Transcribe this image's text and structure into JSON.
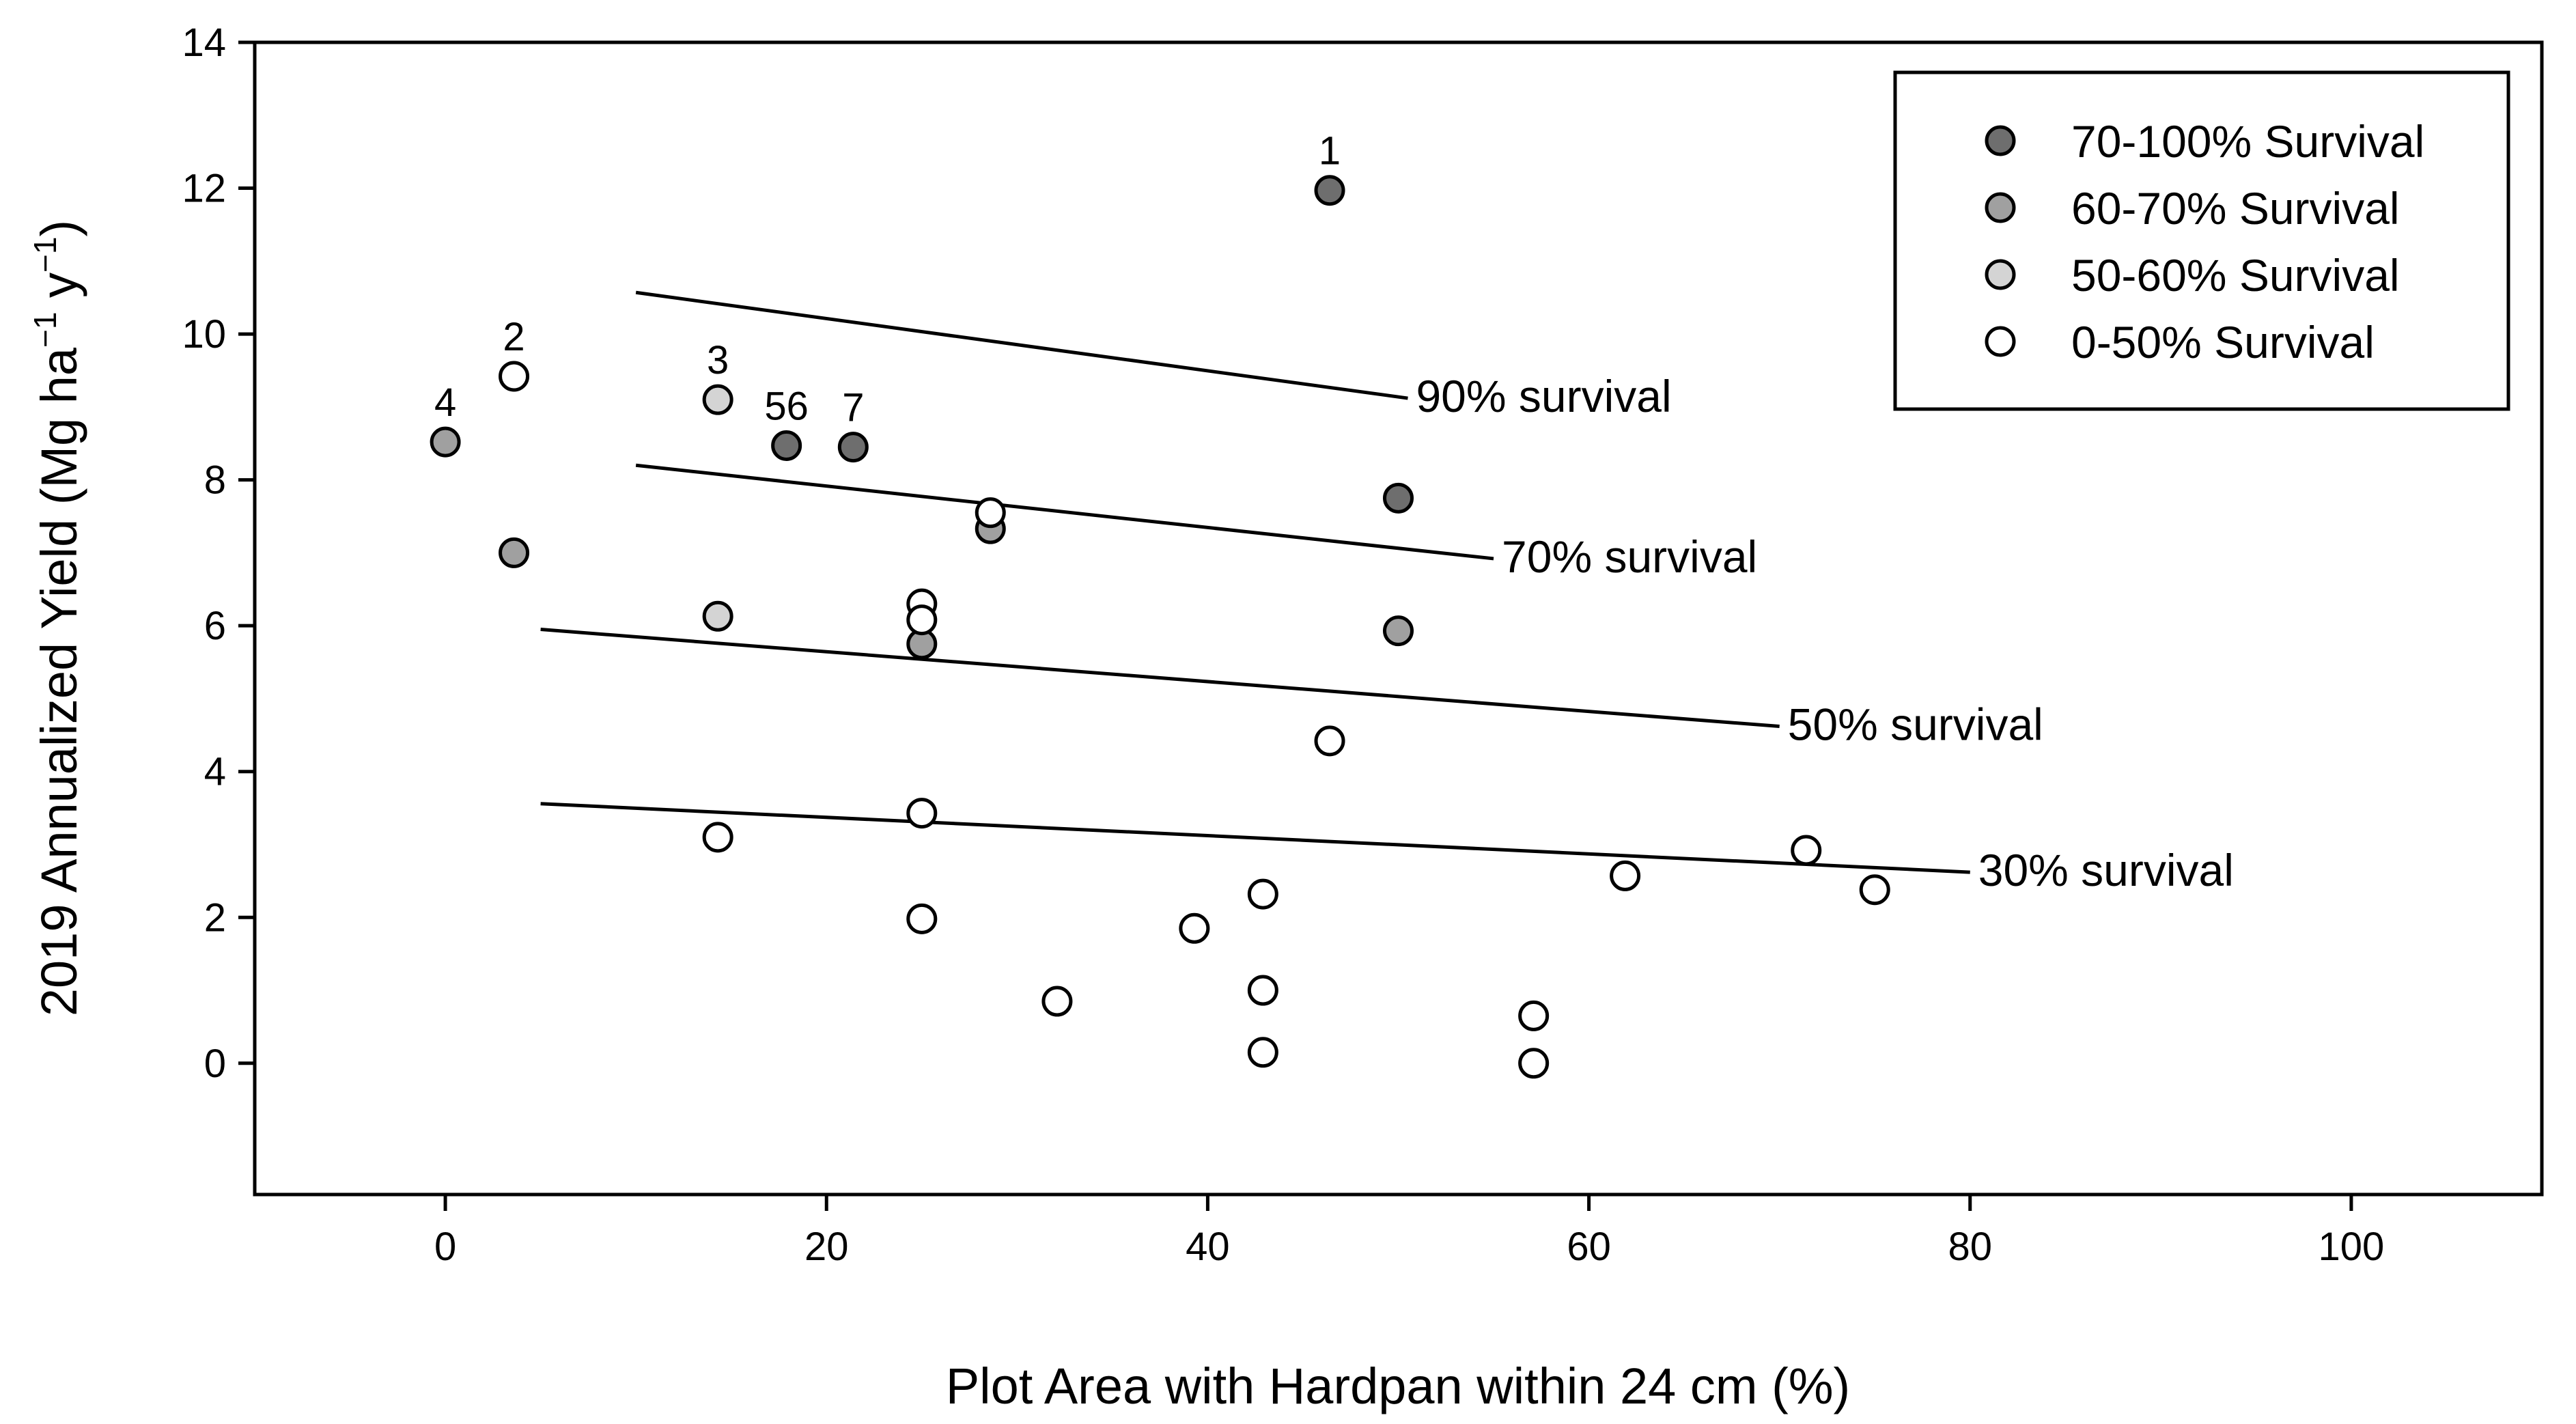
{
  "chart_data": {
    "type": "scatter",
    "title": "",
    "xlabel": "Plot Area with Hardpan within 24 cm (%)",
    "ylabel": {
      "main": "2019 Annualized Yield (Mg ha",
      "sup1": "−1",
      "mid": " y",
      "sup2": "−1",
      "end": ")"
    },
    "xlim": [
      -10,
      110
    ],
    "ylim": [
      -1.8,
      14
    ],
    "xticks": [
      0,
      20,
      40,
      60,
      80,
      100
    ],
    "yticks": [
      0,
      2,
      4,
      6,
      8,
      10,
      12,
      14
    ],
    "colors": {
      "70-100": "#6e6e6e",
      "60-70": "#a0a0a0",
      "50-60": "#d4d4d4",
      "0-50": "#ffffff"
    },
    "series": [
      {
        "name": "70-100% Survival",
        "key": "70-100",
        "points": [
          [
            46.4,
            11.97
          ],
          [
            17.9,
            8.47
          ],
          [
            21.4,
            8.45
          ],
          [
            50,
            7.75
          ]
        ]
      },
      {
        "name": "60-70% Survival",
        "key": "60-70",
        "points": [
          [
            0,
            8.52
          ],
          [
            3.6,
            7.0
          ],
          [
            28.6,
            7.33
          ],
          [
            25,
            5.75
          ],
          [
            50,
            5.93
          ]
        ]
      },
      {
        "name": "50-60% Survival",
        "key": "50-60",
        "points": [
          [
            14.3,
            9.1
          ],
          [
            14.3,
            6.13
          ]
        ]
      },
      {
        "name": "0-50% Survival",
        "key": "0-50",
        "points": [
          [
            3.6,
            9.42
          ],
          [
            28.6,
            7.55
          ],
          [
            25,
            6.3
          ],
          [
            25,
            6.08
          ],
          [
            46.4,
            4.42
          ],
          [
            25,
            3.43
          ],
          [
            14.3,
            3.1
          ],
          [
            71.4,
            2.92
          ],
          [
            61.9,
            2.57
          ],
          [
            75,
            2.38
          ],
          [
            42.9,
            2.32
          ],
          [
            25,
            1.98
          ],
          [
            39.3,
            1.85
          ],
          [
            42.9,
            1.0
          ],
          [
            32.1,
            0.85
          ],
          [
            57.1,
            0.65
          ],
          [
            42.9,
            0.15
          ],
          [
            57.1,
            0.0
          ]
        ]
      }
    ],
    "survival_lines": [
      {
        "label": "90% survival",
        "x": [
          10,
          50.5
        ],
        "y": [
          10.57,
          9.12
        ]
      },
      {
        "label": "70% survival",
        "x": [
          10,
          55
        ],
        "y": [
          8.2,
          6.92
        ]
      },
      {
        "label": "50% survival",
        "x": [
          5,
          70
        ],
        "y": [
          5.95,
          4.62
        ]
      },
      {
        "label": "30% survival",
        "x": [
          5,
          80
        ],
        "y": [
          3.56,
          2.62
        ]
      }
    ],
    "point_labels": [
      {
        "text": "1",
        "x": 46.4,
        "y": 11.97
      },
      {
        "text": "2",
        "x": 3.6,
        "y": 9.42
      },
      {
        "text": "3",
        "x": 14.3,
        "y": 9.1
      },
      {
        "text": "4",
        "x": 0,
        "y": 8.52
      },
      {
        "text": "56",
        "x": 17.9,
        "y": 8.47
      },
      {
        "text": "7",
        "x": 21.4,
        "y": 8.45
      }
    ],
    "legend": {
      "position": "top-right",
      "entries": [
        "70-100% Survival",
        "60-70% Survival",
        "50-60% Survival",
        "0-50% Survival"
      ],
      "keys": [
        "70-100",
        "60-70",
        "50-60",
        "0-50"
      ]
    }
  }
}
